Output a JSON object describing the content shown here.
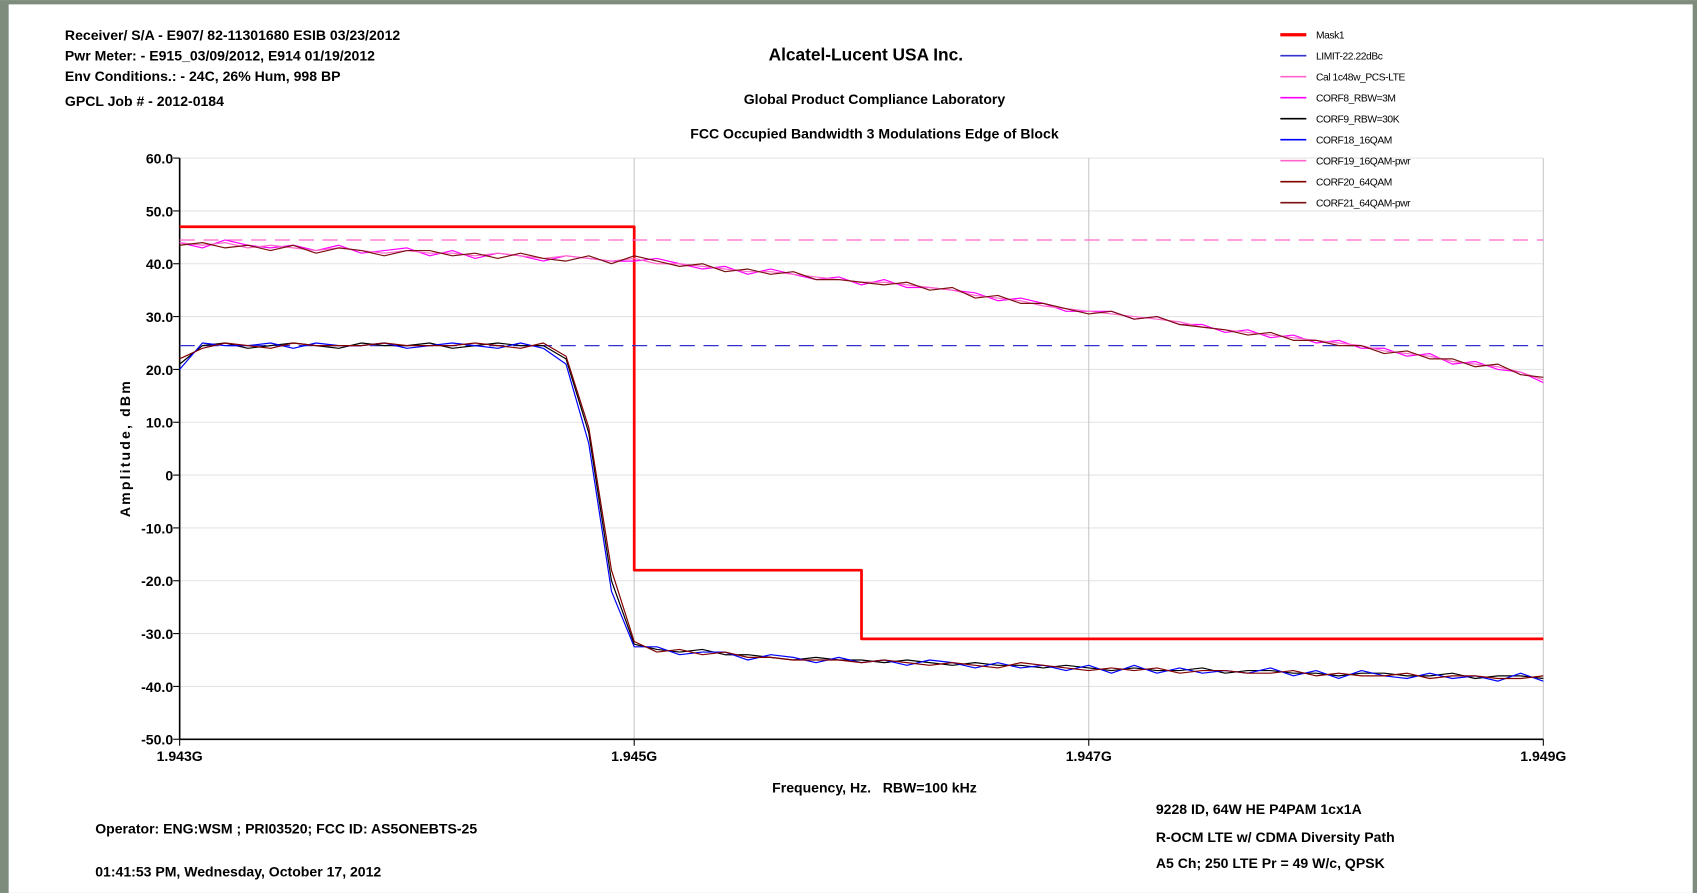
{
  "chart_data": {
    "type": "line",
    "header_left": [
      "Receiver/ S/A - E907/ 82-11301680 ESIB 03/23/2012",
      "Pwr Meter: - E915_03/09/2012, E914 01/19/2012",
      "Env Conditions.: - 24C, 26% Hum,  998 BP",
      "GPCL Job #  - 2012-0184"
    ],
    "title": "Alcatel-Lucent USA Inc.",
    "subtitles": [
      "Global Product Compliance Laboratory",
      "FCC Occupied Bandwidth 3 Modulations Edge of Block"
    ],
    "x_label": "Frequency, Hz.   RBW=100 kHz",
    "y_label": "Amplitude, dBm",
    "footer_left": [
      "Operator:  ENG:WSM ; PRI03520;  FCC ID: AS5ONEBTS-25",
      "01:41:53 PM, Wednesday, October 17, 2012"
    ],
    "footer_right": [
      "9228 ID, 64W HE P4PAM 1cx1A",
      "R-OCM LTE w/ CDMA Diversity Path",
      "A5 Ch; 250 LTE Pr = 49 W/c, QPSK"
    ],
    "xlim": [
      1943000000,
      1949000000
    ],
    "xticks": [
      {
        "value": 1943000000,
        "label": "1.943G"
      },
      {
        "value": 1945000000,
        "label": "1.945G"
      },
      {
        "value": 1947000000,
        "label": "1.947G"
      },
      {
        "value": 1949000000,
        "label": "1.949G"
      }
    ],
    "ylim": [
      -50,
      60
    ],
    "yticks": [
      {
        "value": 60,
        "label": "60.0"
      },
      {
        "value": 50,
        "label": "50.0"
      },
      {
        "value": 40,
        "label": "40.0"
      },
      {
        "value": 30,
        "label": "30.0"
      },
      {
        "value": 20,
        "label": "20.0"
      },
      {
        "value": 10,
        "label": "10.0"
      },
      0,
      {
        "value": -10,
        "label": "-10.0"
      },
      {
        "value": -20,
        "label": "-20.0"
      },
      {
        "value": -30,
        "label": "-30.0"
      },
      {
        "value": -40,
        "label": "-40.0"
      },
      {
        "value": -50,
        "label": "-50.0"
      }
    ],
    "grid": true,
    "legend": "top-right",
    "x": [
      1943000000,
      1943100000,
      1943200000,
      1943300000,
      1943400000,
      1943500000,
      1943600000,
      1943700000,
      1943800000,
      1943900000,
      1944000000,
      1944100000,
      1944200000,
      1944300000,
      1944400000,
      1944500000,
      1944600000,
      1944700000,
      1944800000,
      1944900000,
      1945000000,
      1945100000,
      1945200000,
      1945300000,
      1945400000,
      1945500000,
      1945600000,
      1945700000,
      1945800000,
      1945900000,
      1946000000,
      1946100000,
      1946200000,
      1946300000,
      1946400000,
      1946500000,
      1946600000,
      1946700000,
      1946800000,
      1946900000,
      1947000000,
      1947100000,
      1947200000,
      1947300000,
      1947400000,
      1947500000,
      1947600000,
      1947700000,
      1947800000,
      1947900000,
      1948000000,
      1948100000,
      1948200000,
      1948300000,
      1948400000,
      1948500000,
      1948600000,
      1948700000,
      1948800000,
      1948900000,
      1949000000
    ],
    "series": [
      {
        "name": "Mask1",
        "color": "#ff0000",
        "width": 2.5,
        "x": [
          1943000000,
          1945000000,
          1945000000,
          1946000000,
          1946000000,
          1949000000
        ],
        "values": [
          47,
          47,
          -18,
          -18,
          -31,
          -31
        ]
      },
      {
        "name": "LIMIT-22.22dBc",
        "color": "#3333cc",
        "dash": true,
        "x": [
          1943000000,
          1949000000
        ],
        "values": [
          24.5,
          24.5
        ]
      },
      {
        "name": "Cal 1c48w_PCS-LTE",
        "color": "#ff66cc",
        "dash": true,
        "x": [
          1943000000,
          1949000000
        ],
        "values": [
          44.5,
          44.5
        ]
      },
      {
        "name": "CORF8_RBW=3M",
        "color": "#ff00ff",
        "values": [
          44,
          43,
          44.5,
          43.5,
          43,
          43.5,
          42.5,
          43.5,
          42,
          42.5,
          43,
          41.5,
          42.5,
          41,
          42,
          41.5,
          40.5,
          41.5,
          41,
          40.5,
          40.5,
          41,
          40,
          39,
          39.5,
          38,
          39,
          38,
          37,
          37.5,
          36,
          37,
          35.5,
          35.5,
          35,
          34.5,
          33,
          33.5,
          32.5,
          31,
          31,
          31,
          29.5,
          30,
          28.5,
          28.5,
          27,
          27.5,
          26,
          26.5,
          25,
          25.5,
          24,
          24,
          22.5,
          23,
          21,
          21.5,
          20,
          19.5,
          17.5
        ]
      },
      {
        "name": "CORF9_RBW=30K",
        "color": "#000000",
        "values": [
          21,
          24.5,
          25,
          24,
          24.5,
          25,
          24.5,
          24,
          25,
          24.5,
          24.5,
          25,
          24,
          24.5,
          25,
          24.5,
          24.5,
          22,
          8,
          -20,
          -32,
          -33,
          -33.5,
          -33,
          -34,
          -34,
          -34.5,
          -35,
          -34.5,
          -35,
          -35,
          -35.5,
          -35,
          -35.5,
          -36,
          -35.5,
          -36,
          -36,
          -36.5,
          -36,
          -36.5,
          -37,
          -36.5,
          -37,
          -37,
          -36.5,
          -37.5,
          -37,
          -37,
          -37.5,
          -37.5,
          -38,
          -37.5,
          -37.5,
          -38,
          -38,
          -37.5,
          -38.5,
          -38,
          -38,
          -38.5
        ]
      },
      {
        "name": "CORF18_16QAM",
        "color": "#0000ff",
        "values": [
          20,
          25,
          24.5,
          24.5,
          25,
          24,
          25,
          24.5,
          24.5,
          25,
          24,
          24.5,
          25,
          24.5,
          24,
          25,
          24,
          21,
          6,
          -22,
          -32.5,
          -32.5,
          -34,
          -33.5,
          -33.5,
          -35,
          -34,
          -34.5,
          -35.5,
          -34.5,
          -35.5,
          -35,
          -36,
          -35,
          -35.5,
          -36.5,
          -35.5,
          -36.5,
          -36,
          -37,
          -36,
          -37.5,
          -36,
          -37.5,
          -36.5,
          -37.5,
          -37,
          -37.5,
          -36.5,
          -38,
          -37,
          -38.5,
          -37,
          -38,
          -38.5,
          -37.5,
          -38.5,
          -38,
          -39,
          -37.5,
          -39
        ]
      },
      {
        "name": "CORF19_16QAM-pwr",
        "color": "#ff66cc",
        "values": [
          44,
          43.5,
          44,
          43,
          43.5,
          43,
          42.5,
          43,
          42.5,
          42,
          42.5,
          42,
          42,
          41.5,
          42,
          41.5,
          41,
          41.5,
          41,
          40.5,
          41,
          40,
          40,
          39.5,
          39,
          38.5,
          38.5,
          38,
          37.5,
          37,
          36.5,
          36.5,
          36,
          35.5,
          35,
          34,
          33.5,
          33,
          32,
          31.5,
          31,
          30.5,
          30,
          29.5,
          29,
          28,
          27.5,
          27,
          26.5,
          26,
          25.5,
          25,
          24.5,
          23.5,
          23,
          22.5,
          21.5,
          21,
          20.5,
          19.5,
          18
        ]
      },
      {
        "name": "CORF20_64QAM",
        "color": "#800000",
        "values": [
          22,
          24,
          25,
          24.5,
          24,
          25,
          24.5,
          24.5,
          24.5,
          25,
          24.5,
          24.5,
          24.5,
          25,
          24.5,
          24,
          25,
          22.5,
          9,
          -18,
          -31.5,
          -33.5,
          -33,
          -34,
          -33.5,
          -34.5,
          -34.5,
          -35,
          -35,
          -35,
          -35.5,
          -35,
          -35.5,
          -36,
          -35.5,
          -36,
          -36.5,
          -35.5,
          -36,
          -36.5,
          -37,
          -36.5,
          -37,
          -36.5,
          -37.5,
          -37,
          -37,
          -37.5,
          -37.5,
          -37,
          -38,
          -37.5,
          -38,
          -38,
          -37.5,
          -38.5,
          -38,
          -38,
          -38.5,
          -38.5,
          -38
        ]
      },
      {
        "name": "CORF21_64QAM-pwr",
        "color": "#7a1010",
        "values": [
          43.5,
          44,
          43,
          43.5,
          42.5,
          43.5,
          42,
          43,
          42.5,
          41.5,
          42.5,
          42.5,
          41.5,
          42,
          41,
          42,
          41,
          40.5,
          41.5,
          40,
          41.5,
          40.5,
          39.5,
          40,
          38.5,
          39,
          38,
          38.5,
          37,
          37,
          36.5,
          36,
          36.5,
          35,
          35.5,
          33.5,
          34,
          32.5,
          32.5,
          31.5,
          30.5,
          31,
          29.5,
          30,
          28.5,
          28,
          27.5,
          26.5,
          27,
          25.5,
          25.5,
          24.5,
          24.5,
          23,
          23.5,
          22,
          22,
          20.5,
          21,
          19,
          18.5
        ]
      }
    ]
  }
}
